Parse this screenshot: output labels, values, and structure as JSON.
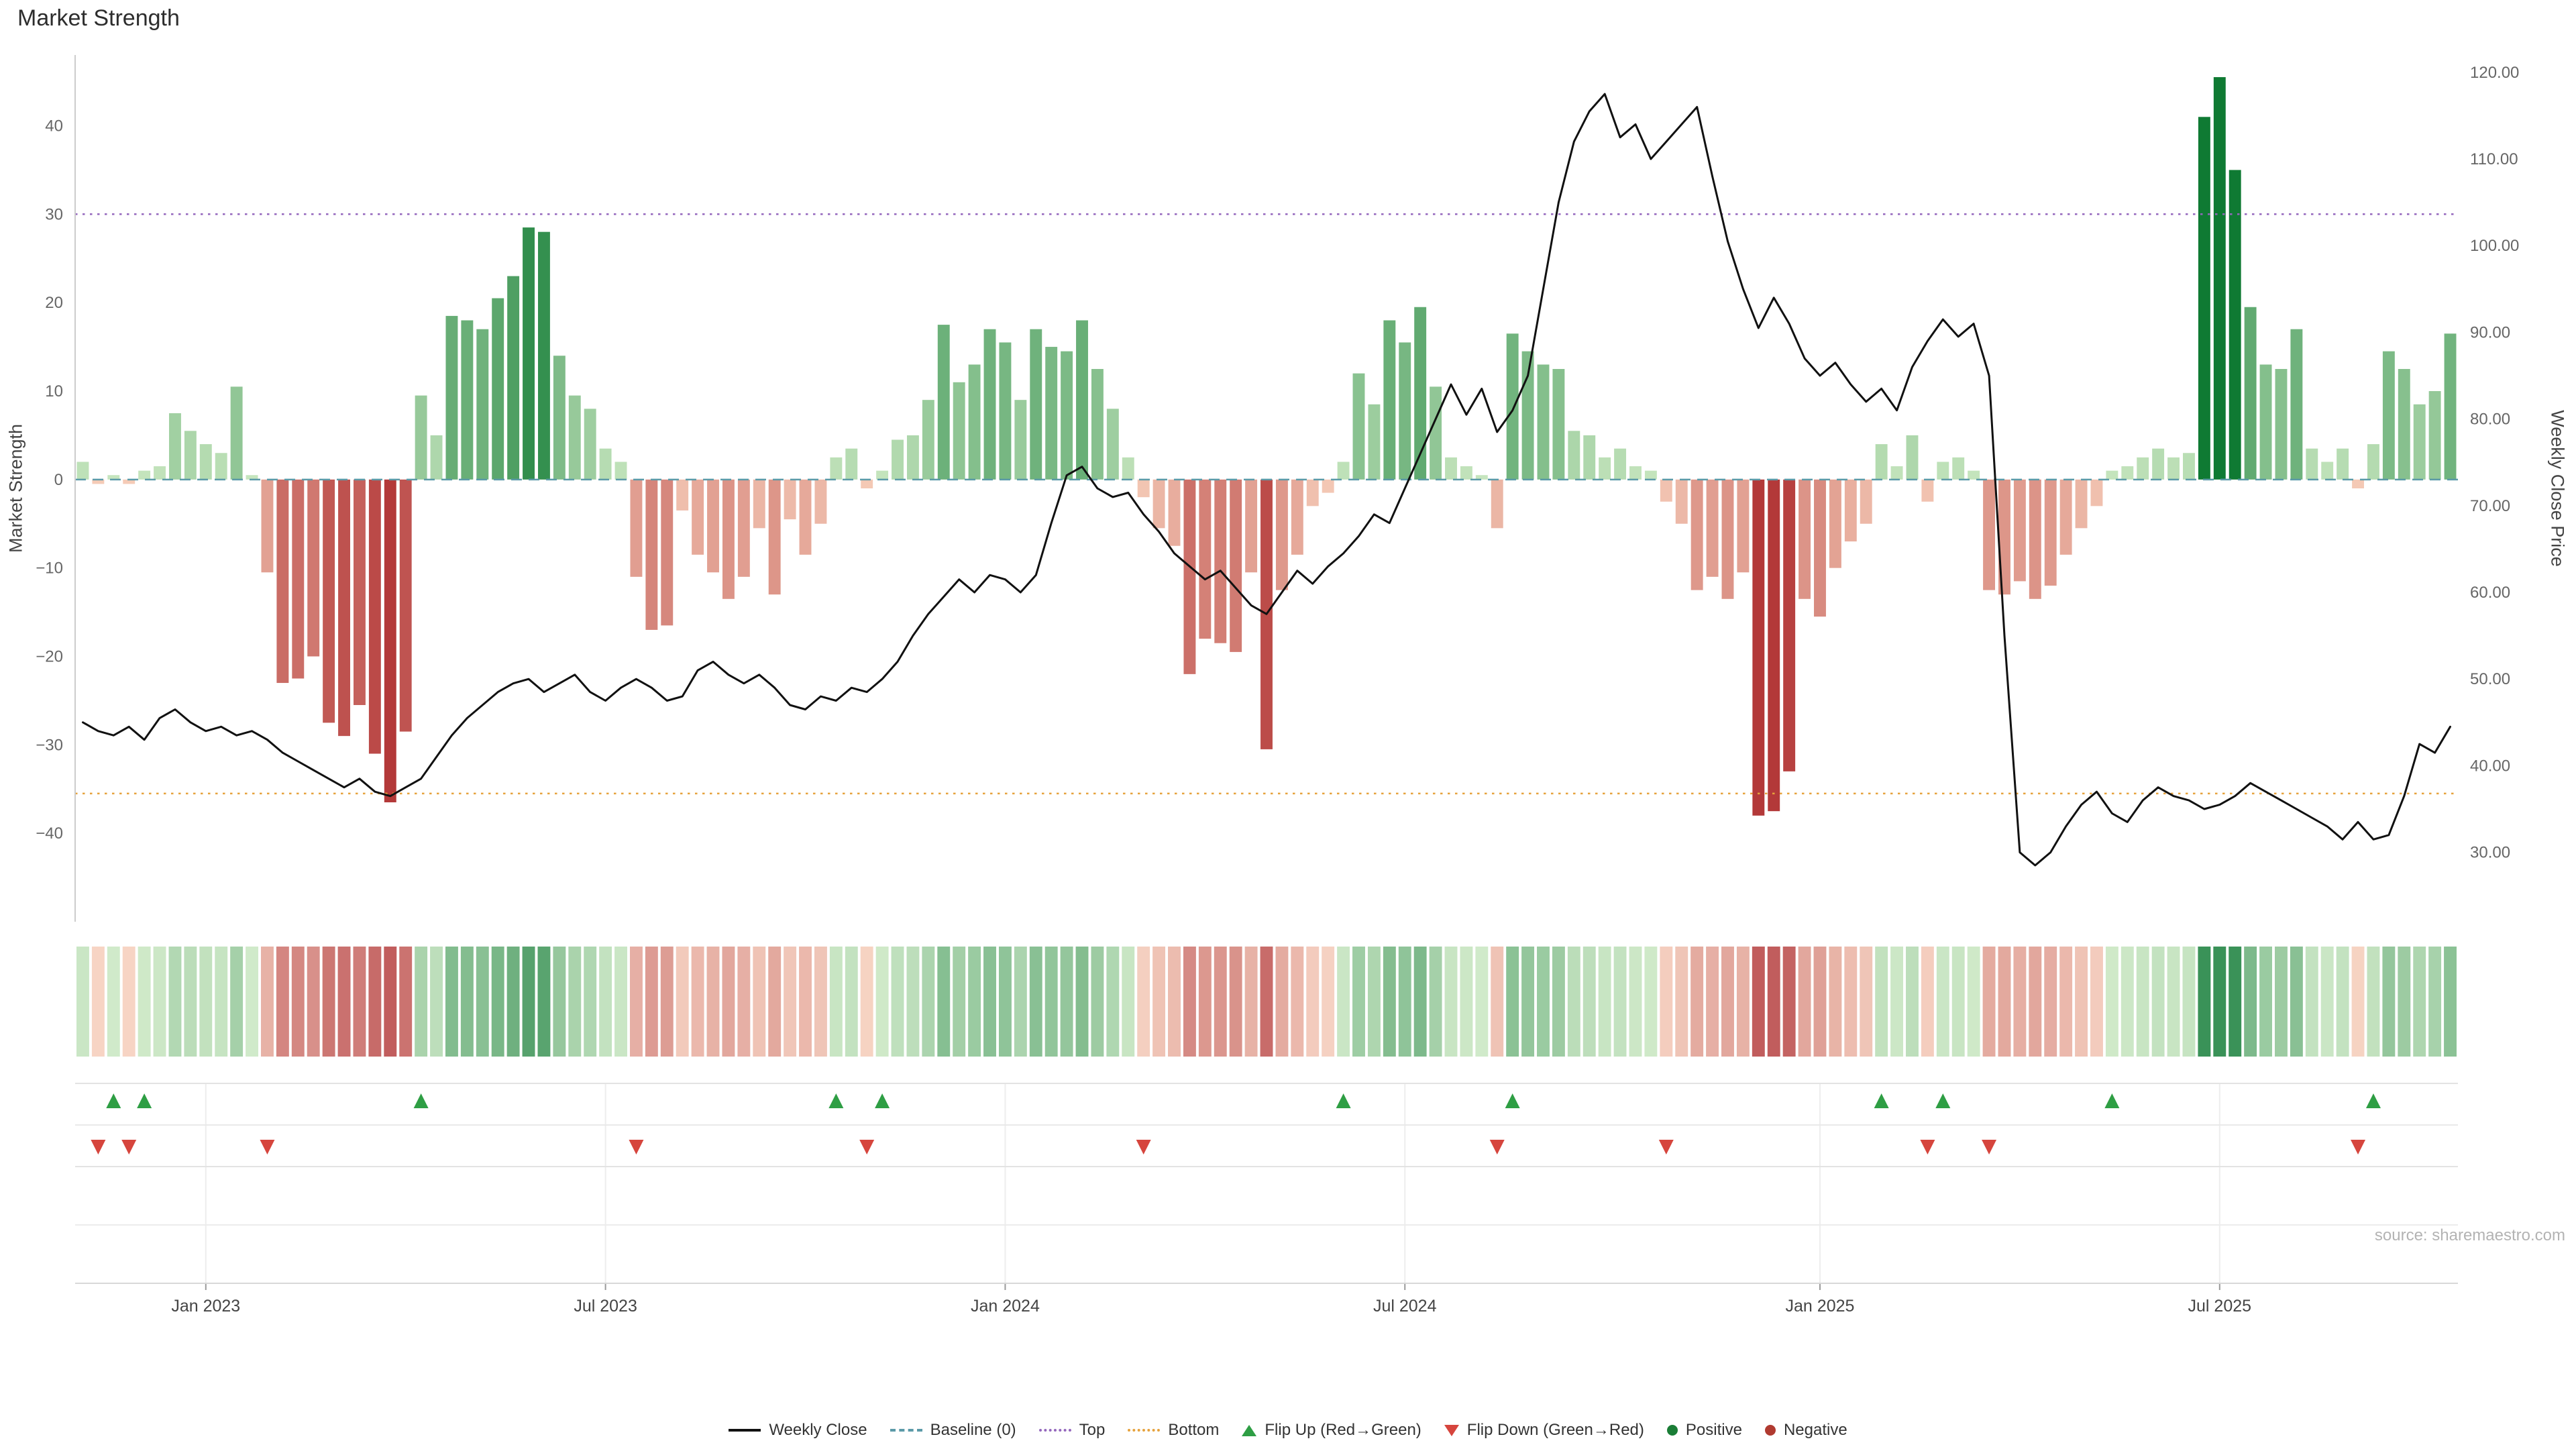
{
  "page": {
    "title": "Market Strength"
  },
  "source": "source: sharemaestro.com",
  "legend": {
    "items": [
      {
        "label": "Weekly Close"
      },
      {
        "label": "Baseline (0)"
      },
      {
        "label": "Top"
      },
      {
        "label": "Bottom"
      },
      {
        "label": "Flip Up (Red→Green)"
      },
      {
        "label": "Flip Down (Green→Red)"
      },
      {
        "label": "Positive"
      },
      {
        "label": "Negative"
      }
    ]
  },
  "chart_data": {
    "type": "bar+line",
    "title": "Market Strength",
    "x_tick_labels": [
      "Jan 2023",
      "Jul 2023",
      "Jan 2024",
      "Jul 2024",
      "Jan 2025",
      "Jul 2025"
    ],
    "x_tick_weeks": [
      8,
      34,
      60,
      86,
      113,
      139
    ],
    "left_axis": {
      "label": "Market Strength",
      "ticks": [
        40,
        30,
        20,
        10,
        0,
        -10,
        -20,
        -30,
        -40
      ],
      "lim": [
        -50,
        48
      ]
    },
    "right_axis": {
      "label": "Weekly Close Price",
      "ticks": [
        120,
        110,
        100,
        90,
        80,
        70,
        60,
        50,
        40,
        30
      ],
      "lim": [
        22,
        122
      ]
    },
    "series": [
      {
        "name": "Market Strength",
        "type": "bar",
        "axis": "left",
        "values": [
          2,
          -0.5,
          0.5,
          -0.5,
          1,
          1.5,
          7.5,
          5.5,
          4,
          3,
          10.5,
          0.5,
          -10.5,
          -23,
          -22.5,
          -20,
          -27.5,
          -29,
          -25.5,
          -31,
          -36.5,
          -28.5,
          9.5,
          5,
          18.5,
          18,
          17,
          20.5,
          23,
          28.5,
          28,
          14,
          9.5,
          8,
          3.5,
          2,
          -11,
          -17,
          -16.5,
          -3.5,
          -8.5,
          -10.5,
          -13.5,
          -11,
          -5.5,
          -13,
          -4.5,
          -8.5,
          -5,
          2.5,
          3.5,
          -1,
          1,
          4.5,
          5,
          9,
          17.5,
          11,
          13,
          17,
          15.5,
          9,
          17,
          15,
          14.5,
          18,
          12.5,
          8,
          2.5,
          -2,
          -5.5,
          -7.5,
          -22,
          -18,
          -18.5,
          -19.5,
          -10.5,
          -30.5,
          -12.5,
          -8.5,
          -3,
          -1.5,
          2,
          12,
          8.5,
          18,
          15.5,
          19.5,
          10.5,
          2.5,
          1.5,
          0.5,
          -5.5,
          16.5,
          14.5,
          13,
          12.5,
          5.5,
          5,
          2.5,
          3.5,
          1.5,
          1,
          -2.5,
          -5,
          -12.5,
          -11,
          -13.5,
          -10.5,
          -38,
          -37.5,
          -33,
          -13.5,
          -15.5,
          -10,
          -7,
          -5,
          4,
          1.5,
          5,
          -2.5,
          2,
          2.5,
          1,
          -12.5,
          -13,
          -11.5,
          -13.5,
          -12,
          -8.5,
          -5.5,
          -3,
          1,
          1.5,
          2.5,
          3.5,
          2.5,
          3,
          41,
          45.5,
          35,
          19.5,
          13,
          12.5,
          17,
          3.5,
          2,
          3.5,
          -1,
          4,
          14.5,
          12.5,
          8.5,
          10,
          16.5
        ]
      },
      {
        "name": "Weekly Close",
        "type": "line",
        "axis": "right",
        "color_key": "weekly_close",
        "values": [
          45,
          44,
          43.5,
          44.5,
          43,
          45.5,
          46.5,
          45,
          44,
          44.5,
          43.5,
          44,
          43,
          41.5,
          40.5,
          39.5,
          38.5,
          37.5,
          38.5,
          37,
          36.5,
          37.5,
          38.5,
          41,
          43.5,
          45.5,
          47,
          48.5,
          49.5,
          50,
          48.5,
          49.5,
          50.5,
          48.5,
          47.5,
          49,
          50,
          49,
          47.5,
          48,
          51,
          52,
          50.5,
          49.5,
          50.5,
          49,
          47,
          46.5,
          48,
          47.5,
          49,
          48.5,
          50,
          52,
          55,
          57.5,
          59.5,
          61.5,
          60,
          62,
          61.5,
          60,
          62,
          68,
          73.5,
          74.5,
          72,
          71,
          71.5,
          69,
          67,
          64.5,
          63,
          61.5,
          62.5,
          60.5,
          58.5,
          57.5,
          60,
          62.5,
          61,
          63,
          64.5,
          66.5,
          69,
          68,
          72,
          76,
          80,
          84,
          80.5,
          83.5,
          78.5,
          81,
          85,
          95,
          105,
          112,
          115.5,
          117.5,
          112.5,
          114,
          110,
          112,
          114,
          116,
          108,
          100.5,
          95,
          90.5,
          94,
          91,
          87,
          85,
          86.5,
          84,
          82,
          83.5,
          81,
          86,
          89,
          91.5,
          89.5,
          91,
          85,
          55,
          30,
          28.5,
          30,
          33,
          35.5,
          37,
          34.5,
          33.5,
          36,
          37.5,
          36.5,
          36,
          35,
          35.5,
          36.5,
          38,
          37,
          36,
          35,
          34,
          33,
          31.5,
          33.5,
          31.5,
          32,
          36.5,
          42.5,
          41.5,
          44.5
        ]
      }
    ],
    "reference_lines": [
      {
        "name": "Baseline (0)",
        "value": 0,
        "style": "dashed",
        "color_key": "baseline"
      },
      {
        "name": "Top",
        "value": 30,
        "style": "dotted",
        "color_key": "top"
      },
      {
        "name": "Bottom",
        "value": -35.5,
        "style": "dotted",
        "color_key": "bottom"
      }
    ],
    "heatmap": {
      "description": "one cell per week colored by Market Strength value"
    },
    "flip_markers": {
      "up": "week where strength flips negative to positive",
      "down": "week where strength flips positive to negative"
    },
    "colors": {
      "weekly_close": "#111111",
      "baseline": "#5b9aa8",
      "top": "#9467bd",
      "bottom": "#e6a23c",
      "bar_positive_light": "#c9e7c0",
      "bar_positive_dark": "#0f7a33",
      "bar_negative_light": "#f6cdb9",
      "bar_negative_dark": "#b33939",
      "flip_up": "#2e9e44",
      "flip_down": "#d6453d",
      "positive": "#1a7d36",
      "negative": "#b03a30"
    }
  }
}
